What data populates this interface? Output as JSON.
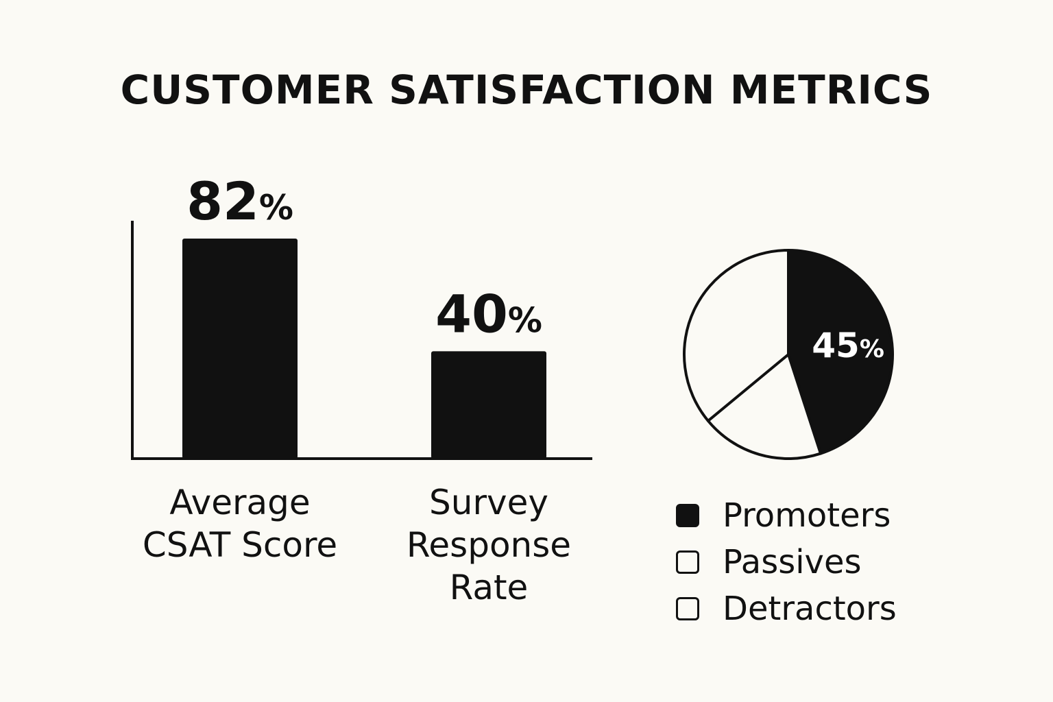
{
  "title": "CUSTOMER SATISFACTION METRICS",
  "chart_data": [
    {
      "type": "bar",
      "categories": [
        "Average\nCSAT Score",
        "Survey\nResponse\nRate"
      ],
      "values": [
        82,
        40
      ],
      "data_labels": [
        "82%",
        "40%"
      ],
      "unit": "%",
      "ylim": [
        0,
        100
      ],
      "grid": false,
      "bar_color": "#111111"
    },
    {
      "type": "pie",
      "slices": [
        {
          "label": "Promoters",
          "value": 45,
          "data_label": "45%",
          "fill": "#111111"
        },
        {
          "label": "Passives",
          "value": 19,
          "fill": "#fbfaf5"
        },
        {
          "label": "Detractors",
          "value": 36,
          "fill": "#fbfaf5"
        }
      ],
      "legend_position": "bottom"
    }
  ],
  "legend": {
    "items": [
      {
        "label": "Promoters",
        "color": "#111111"
      },
      {
        "label": "Passives",
        "color": "#fbfaf5"
      },
      {
        "label": "Detractors",
        "color": "#fbfaf5"
      }
    ]
  }
}
